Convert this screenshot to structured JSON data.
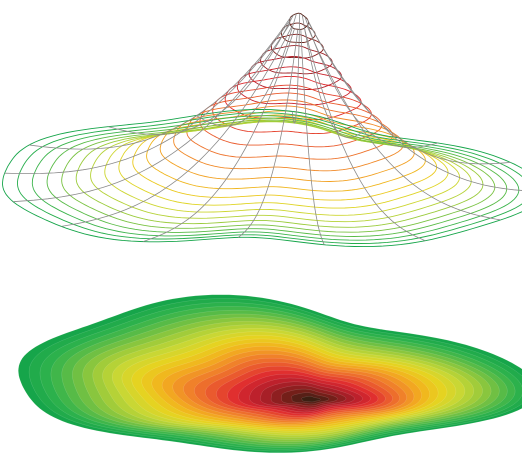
{
  "figure": {
    "kind": "3d-surface-illustration",
    "upper_view": "wireframe-mesh",
    "lower_view": "filled-contour-map",
    "color_ramp": [
      "#16a54a",
      "#2fb24c",
      "#63bd45",
      "#9ccb3b",
      "#c9d734",
      "#e8d21f",
      "#f2b01e",
      "#f1862a",
      "#ea5a2e",
      "#df2a2f",
      "#b31f2b",
      "#7b1f1a",
      "#3b1f12"
    ],
    "wire_neutral_color": "#8a8a8a"
  }
}
